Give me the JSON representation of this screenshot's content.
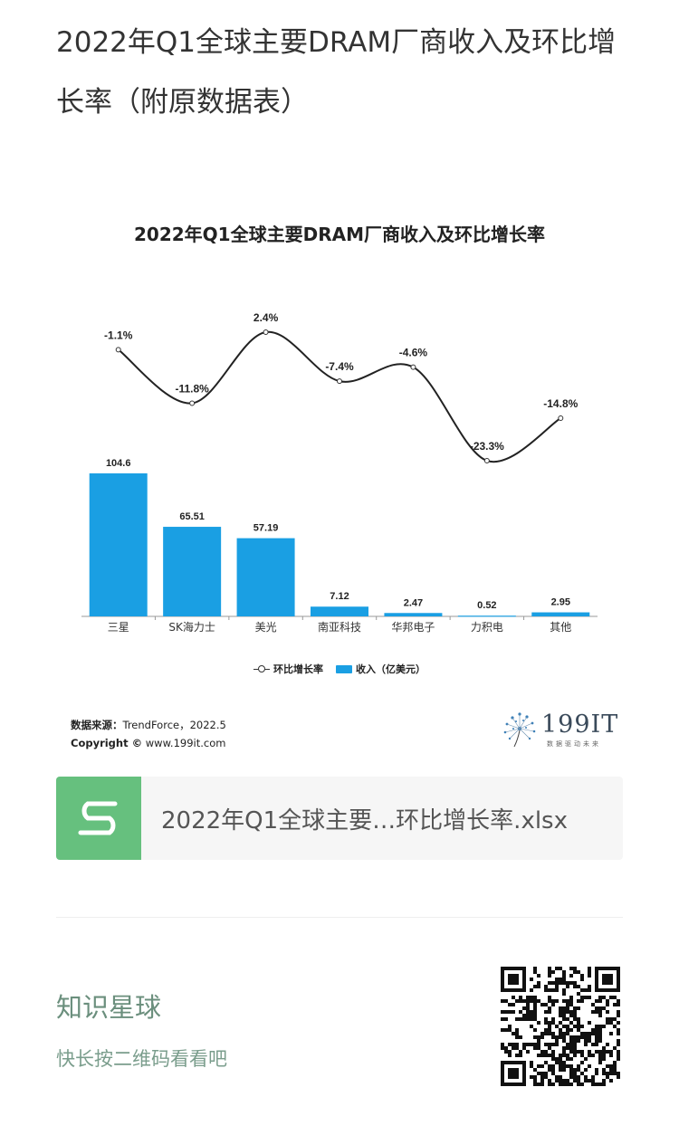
{
  "article": {
    "title": "2022年Q1全球主要DRAM厂商收入及环比增长率（附原数据表）"
  },
  "chart_data": {
    "type": "bar",
    "title": "2022年Q1全球主要DRAM厂商收入及环比增长率",
    "categories": [
      "三星",
      "SK海力士",
      "美光",
      "南亚科技",
      "华邦电子",
      "力积电",
      "其他"
    ],
    "series": [
      {
        "name": "收入（亿美元）",
        "type": "bar",
        "values": [
          104.6,
          65.51,
          57.19,
          7.12,
          2.47,
          0.52,
          2.95
        ],
        "labels": [
          "104.6",
          "65.51",
          "57.19",
          "7.12",
          "2.47",
          "0.52",
          "2.95"
        ],
        "color": "#1a9fe3"
      },
      {
        "name": "环比增长率",
        "type": "line",
        "values": [
          -1.1,
          -11.8,
          2.4,
          -7.4,
          -4.6,
          -23.3,
          -14.8
        ],
        "labels": [
          "-1.1%",
          "-11.8%",
          "2.4%",
          "-7.4%",
          "-4.6%",
          "-23.3%",
          "-14.8%"
        ],
        "color": "#222222"
      }
    ],
    "legend": {
      "placement": "bottom",
      "line_label": "环比增长率",
      "bar_label": "收入（亿美元）"
    }
  },
  "source": {
    "label": "数据来源：",
    "value": "TrendForce，2022.5",
    "copyright_label": "Copyright ©",
    "copyright_value": "www.199it.com"
  },
  "logo": {
    "text": "199IT",
    "sub": "数据驱动未来"
  },
  "file": {
    "name": "2022年Q1全球主要…环比增长率.xlsx",
    "icon": "sheet-s-icon"
  },
  "planet": {
    "title": "知识星球",
    "subtitle": "快长按二维码看看吧"
  },
  "qr": {
    "icon": "qr-code-icon"
  }
}
